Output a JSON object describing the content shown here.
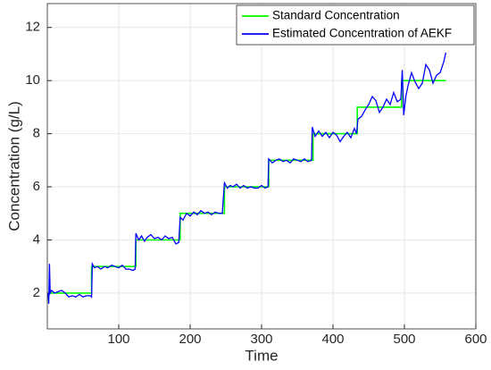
{
  "chart_data": {
    "type": "line",
    "xlabel": "Time",
    "ylabel": "Concentration (g/L)",
    "xlim": [
      0,
      600
    ],
    "ylim": [
      0.65,
      12.9
    ],
    "xticks": [
      100,
      200,
      300,
      400,
      500,
      600
    ],
    "yticks": [
      2,
      4,
      6,
      8,
      10,
      12
    ],
    "grid": true,
    "legend": "upper right",
    "series": [
      {
        "name": "Standard Concentration",
        "color": "#00ff00",
        "x": [
          1,
          62,
          62,
          124,
          124,
          186,
          186,
          248,
          248,
          310,
          310,
          372,
          372,
          434,
          434,
          496,
          496,
          558
        ],
        "values": [
          2,
          2,
          3,
          3,
          4,
          4,
          5,
          5,
          6,
          6,
          7,
          7,
          8,
          8,
          9,
          9,
          10,
          10
        ]
      },
      {
        "name": "Estimated Concentration of AEKF",
        "color": "#0000ff",
        "x": [
          1,
          2,
          3,
          4,
          6,
          10,
          15,
          20,
          25,
          30,
          35,
          40,
          45,
          50,
          55,
          60,
          62,
          63,
          66,
          70,
          75,
          80,
          85,
          90,
          95,
          100,
          105,
          110,
          115,
          120,
          123,
          124,
          128,
          132,
          136,
          140,
          145,
          150,
          155,
          160,
          165,
          170,
          175,
          180,
          184,
          186,
          190,
          195,
          200,
          205,
          210,
          215,
          220,
          225,
          230,
          235,
          240,
          245,
          248,
          252,
          256,
          260,
          265,
          270,
          275,
          280,
          285,
          290,
          295,
          300,
          305,
          309,
          310,
          315,
          320,
          325,
          330,
          335,
          340,
          345,
          350,
          355,
          360,
          365,
          370,
          371,
          375,
          380,
          385,
          390,
          395,
          400,
          405,
          410,
          415,
          420,
          425,
          430,
          433,
          435,
          440,
          445,
          450,
          455,
          460,
          465,
          470,
          475,
          480,
          485,
          490,
          495,
          497,
          499,
          502,
          505,
          510,
          515,
          520,
          525,
          530,
          535,
          540,
          545,
          550,
          555,
          558
        ],
        "values": [
          2.0,
          1.6,
          3.1,
          2.0,
          2.1,
          2.0,
          2.05,
          2.1,
          2.0,
          1.85,
          1.9,
          1.85,
          1.95,
          1.85,
          1.9,
          1.9,
          1.85,
          3.1,
          2.95,
          3.0,
          2.9,
          3.0,
          2.95,
          3.05,
          3.0,
          2.95,
          3.05,
          2.9,
          2.9,
          2.85,
          2.9,
          4.25,
          4.0,
          4.15,
          3.95,
          4.1,
          4.2,
          4.05,
          4.1,
          4.0,
          4.15,
          4.05,
          4.1,
          3.85,
          3.9,
          4.85,
          4.75,
          5.0,
          4.9,
          5.05,
          4.95,
          5.1,
          5.0,
          5.05,
          4.95,
          5.05,
          5.0,
          5.0,
          6.15,
          5.95,
          6.05,
          6.0,
          6.1,
          5.95,
          6.05,
          5.95,
          6.0,
          5.95,
          5.95,
          6.05,
          5.95,
          6.0,
          7.05,
          6.9,
          7.0,
          7.05,
          6.95,
          7.0,
          6.9,
          7.05,
          7.0,
          6.95,
          7.05,
          6.95,
          7.0,
          8.25,
          7.9,
          8.1,
          7.9,
          8.05,
          7.85,
          8.05,
          7.95,
          7.7,
          7.9,
          8.05,
          7.85,
          8.2,
          8.0,
          8.55,
          8.65,
          8.9,
          9.1,
          9.4,
          9.25,
          8.8,
          9.0,
          9.3,
          9.1,
          9.55,
          9.2,
          9.3,
          10.4,
          8.7,
          9.4,
          9.8,
          10.3,
          9.95,
          9.7,
          9.9,
          10.6,
          10.4,
          9.9,
          10.2,
          10.3,
          10.7,
          11.05
        ]
      }
    ]
  }
}
